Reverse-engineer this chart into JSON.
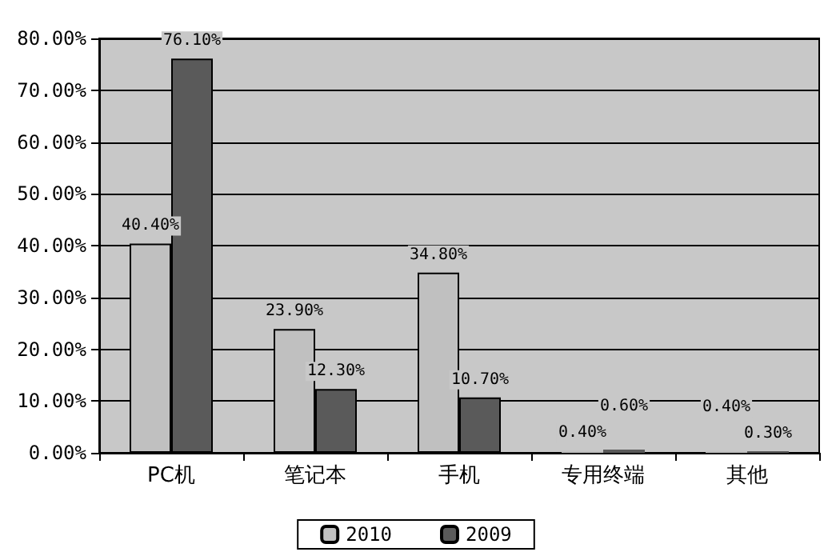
{
  "chart_data": {
    "type": "bar",
    "categories": [
      "PC机",
      "笔记本",
      "手机",
      "专用终端",
      "其他"
    ],
    "series": [
      {
        "name": "2010",
        "color": "#c0c0c0",
        "values": [
          40.4,
          23.9,
          34.8,
          0.4,
          0.4
        ],
        "value_labels": [
          "40.40%",
          "23.90%",
          "34.80%",
          "0.40%",
          "0.40%"
        ]
      },
      {
        "name": "2009",
        "color": "#5a5a5a",
        "values": [
          76.1,
          12.3,
          10.7,
          0.6,
          0.3
        ],
        "value_labels": [
          "76.10%",
          "12.30%",
          "10.70%",
          "0.60%",
          "0.30%"
        ]
      }
    ],
    "ylim": [
      0,
      80
    ],
    "yticks": [
      {
        "value": 0,
        "label": "0.00%"
      },
      {
        "value": 10,
        "label": "10.00%"
      },
      {
        "value": 20,
        "label": "20.00%"
      },
      {
        "value": 30,
        "label": "30.00%"
      },
      {
        "value": 40,
        "label": "40.00%"
      },
      {
        "value": 50,
        "label": "50.00%"
      },
      {
        "value": 60,
        "label": "60.00%"
      },
      {
        "value": 70,
        "label": "70.00%"
      },
      {
        "value": 80,
        "label": "80.00%"
      }
    ],
    "grid": "y",
    "legend": "bottom"
  }
}
